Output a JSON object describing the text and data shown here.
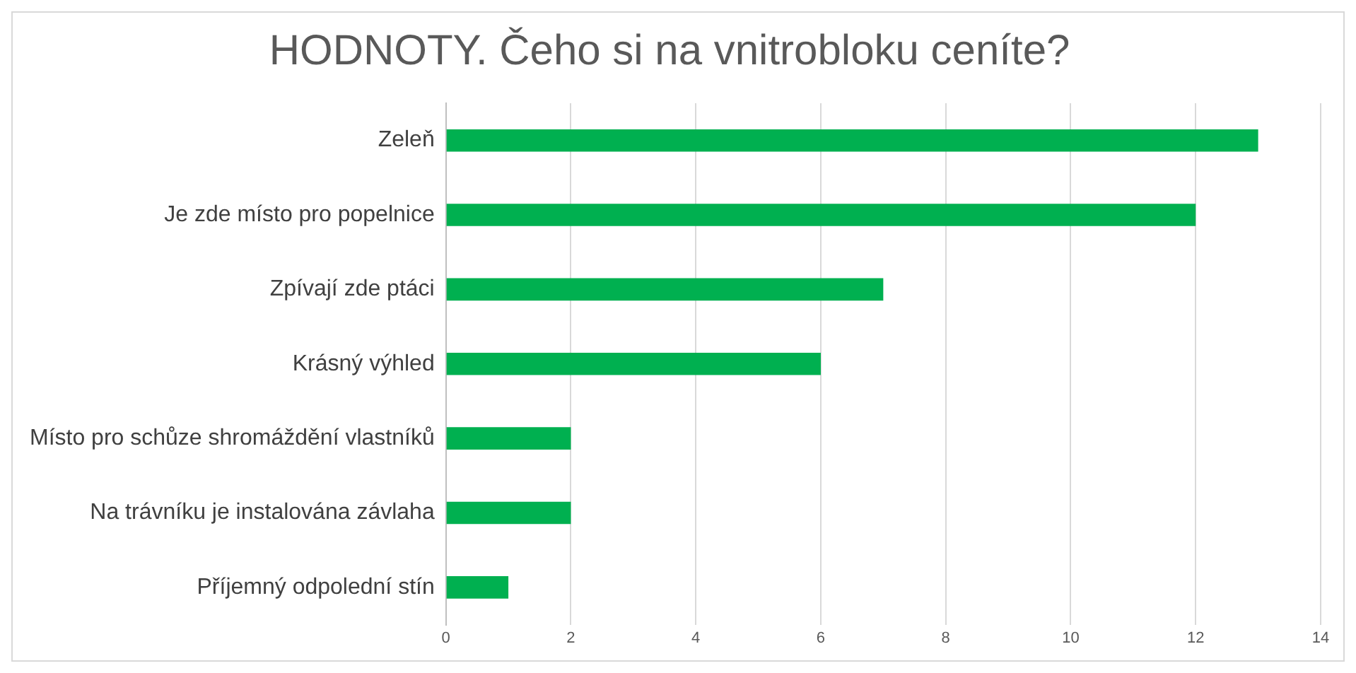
{
  "chart_data": {
    "type": "bar",
    "orientation": "horizontal",
    "title": "HODNOTY. Čeho si na vnitrobloku ceníte?",
    "categories": [
      "Zeleň",
      "Je zde místo pro popelnice",
      "Zpívají zde ptáci",
      "Krásný výhled",
      "Místo pro schůze shromáždění vlastníků",
      "Na trávníku je instalována závlaha",
      "Příjemný odpolední stín"
    ],
    "values": [
      13,
      12,
      7,
      6,
      2,
      2,
      1
    ],
    "color": "#00b050",
    "xlim": [
      0,
      14
    ],
    "xticks": [
      0,
      2,
      4,
      6,
      8,
      10,
      12,
      14
    ],
    "grid": "x"
  }
}
